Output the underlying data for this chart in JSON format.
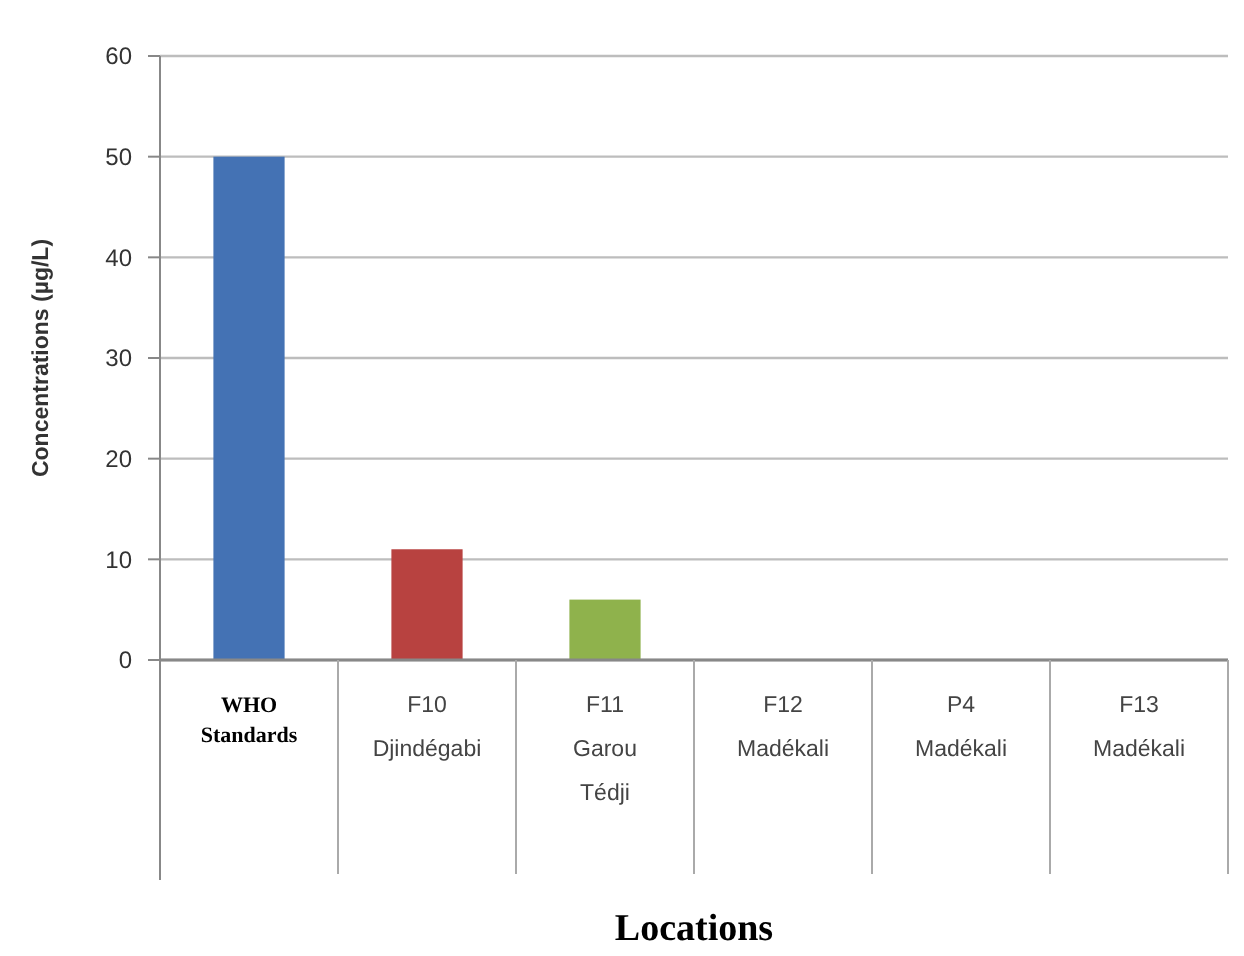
{
  "chart_data": {
    "type": "bar",
    "xlabel": "Locations",
    "ylabel": "Concentrations (µg/L)",
    "categories": [
      "WHO\nStandards",
      "F10\nDjindégabi",
      "F11\nGarou\nTédji",
      "F12\nMadékali",
      "P4\nMadékali",
      "F13\nMadékali"
    ],
    "values": [
      50,
      11,
      6,
      0,
      0,
      0
    ],
    "colors": [
      "#4472b4",
      "#b84240",
      "#8fb24c",
      "#8fb24c",
      "#8fb24c",
      "#8fb24c"
    ],
    "ylim": [
      0,
      60
    ],
    "yticks": [
      0,
      10,
      20,
      30,
      40,
      50,
      60
    ],
    "grid": "y"
  }
}
